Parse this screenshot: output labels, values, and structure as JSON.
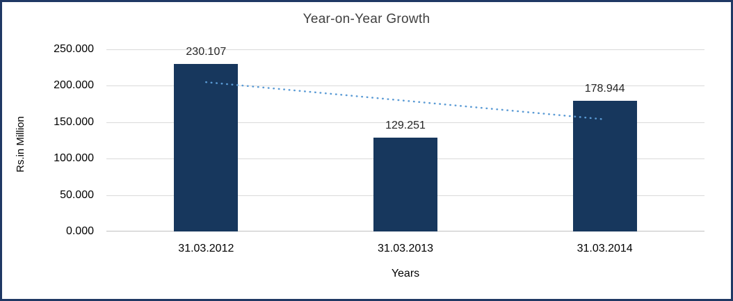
{
  "chart_data": {
    "type": "bar",
    "title": "Year-on-Year Growth",
    "categories": [
      "31.03.2012",
      "31.03.2013",
      "31.03.2014"
    ],
    "values": [
      230.107,
      129.251,
      178.944
    ],
    "value_labels": [
      "230.107",
      "129.251",
      "178.944"
    ],
    "xlabel": "Years",
    "ylabel": "Rs.in Million",
    "ylim": [
      0,
      250
    ],
    "ytick_step": 50,
    "ytick_labels": [
      "0.000",
      "50.000",
      "100.000",
      "150.000",
      "200.000",
      "250.000"
    ],
    "grid": true,
    "legend": "none",
    "bar_color": "#17375D",
    "trendline": {
      "style": "dotted",
      "color": "#5B9BD5",
      "start_value": 205.0,
      "end_value": 153.9
    }
  },
  "colors": {
    "frame_border": "#1F3864",
    "gridline": "#D9D9D9",
    "axis_line": "#BFBFBF",
    "title_text": "#404040",
    "label_text": "#000000"
  }
}
